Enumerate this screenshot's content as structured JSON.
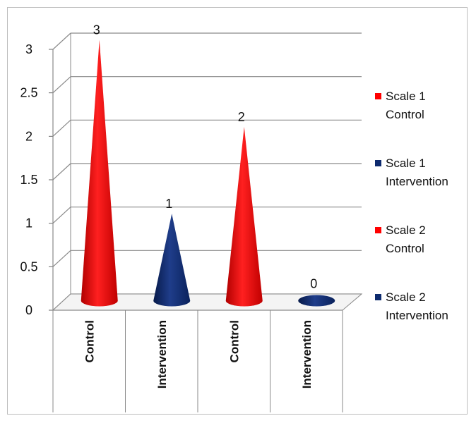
{
  "chart_data": {
    "type": "bar",
    "shape": "cone",
    "three_d": true,
    "categories": [
      "Control",
      "Intervention",
      "Control",
      "Intervention"
    ],
    "series": [
      {
        "name": "Scale 1 Control",
        "color": "#ff0000",
        "values": [
          3,
          null,
          null,
          null
        ]
      },
      {
        "name": "Scale 1 Intervention",
        "color": "#0d2a6e",
        "values": [
          null,
          1,
          null,
          null
        ]
      },
      {
        "name": "Scale 2 Control",
        "color": "#ff0000",
        "values": [
          null,
          null,
          2,
          null
        ]
      },
      {
        "name": "Scale 2 Intervention",
        "color": "#0d2a6e",
        "values": [
          null,
          null,
          null,
          0
        ]
      }
    ],
    "bars": [
      {
        "category": "Control",
        "value": 3,
        "label": "3",
        "color": "#ff0000"
      },
      {
        "category": "Intervention",
        "value": 1,
        "label": "1",
        "color": "#0d2a6e"
      },
      {
        "category": "Control",
        "value": 2,
        "label": "2",
        "color": "#ff0000"
      },
      {
        "category": "Intervention",
        "value": 0,
        "label": "0",
        "color": "#0d2a6e"
      }
    ],
    "yticks": [
      "0",
      "0.5",
      "1",
      "1.5",
      "2",
      "2.5",
      "3"
    ],
    "ylim": [
      0,
      3
    ],
    "grid": true,
    "legend_position": "right",
    "legend": [
      {
        "line1": "Scale 1",
        "line2": "Control",
        "color": "#ff0000"
      },
      {
        "line1": "Scale 1",
        "line2": "Intervention",
        "color": "#0d2a6e"
      },
      {
        "line1": "Scale 2",
        "line2": "Control",
        "color": "#ff0000"
      },
      {
        "line1": "Scale 2",
        "line2": "Intervention",
        "color": "#0d2a6e"
      }
    ],
    "title": "",
    "xlabel": "",
    "ylabel": ""
  }
}
